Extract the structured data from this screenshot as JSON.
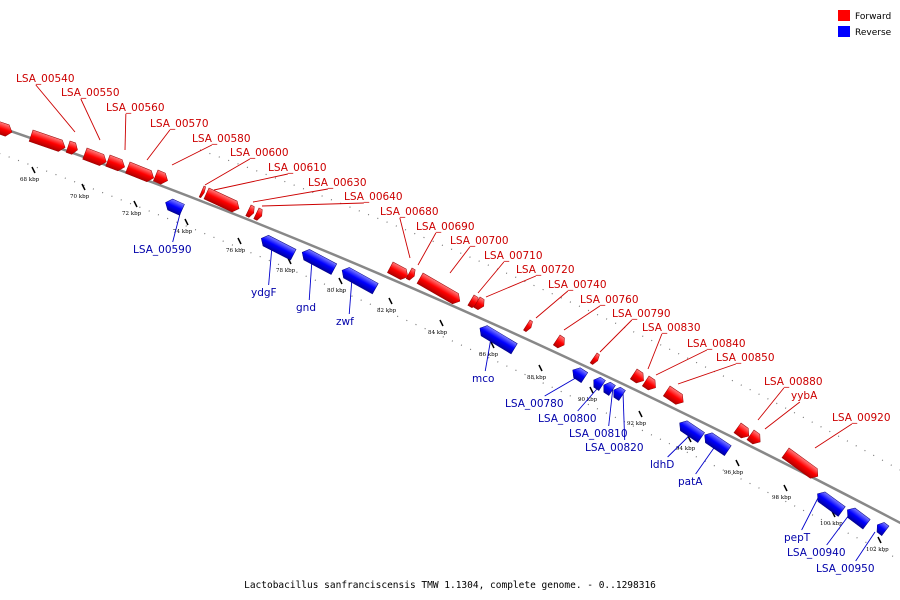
{
  "caption": "Lactobacillus sanfranciscensis TMW 1.1304, complete genome. - 0..1298316",
  "legend": [
    {
      "label": "Forward",
      "color": "#ff0000"
    },
    {
      "label": "Reverse",
      "color": "#0000ff"
    }
  ],
  "colors": {
    "forward": "#ff0000",
    "reverse": "#0000ff",
    "forward_label": "#cc0000",
    "reverse_label": "#0000aa",
    "backbone": "#888888"
  },
  "ticks": [
    "68 kbp",
    "70 kbp",
    "72 kbp",
    "74 kbp",
    "76 kbp",
    "78 kbp",
    "80 kbp",
    "82 kbp",
    "84 kbp",
    "86 kbp",
    "88 kbp",
    "90 kbp",
    "92 kbp",
    "94 kbp",
    "96 kbp",
    "98 kbp",
    "100 kbp",
    "102 kbp"
  ],
  "forward_genes": [
    "LSA_00540",
    "LSA_00550",
    "LSA_00560",
    "LSA_00570",
    "LSA_00580",
    "LSA_00600",
    "LSA_00610",
    "LSA_00630",
    "LSA_00640",
    "LSA_00680",
    "LSA_00690",
    "LSA_00700",
    "LSA_00710",
    "LSA_00720",
    "LSA_00740",
    "LSA_00760",
    "LSA_00790",
    "LSA_00830",
    "LSA_00840",
    "LSA_00850",
    "LSA_00880",
    "yybA",
    "LSA_00920"
  ],
  "reverse_genes": [
    "LSA_00590",
    "ydgF",
    "gnd",
    "zwf",
    "mco",
    "LSA_00780",
    "LSA_00800",
    "LSA_00810",
    "LSA_00820",
    "ldhD",
    "patA",
    "pepT",
    "LSA_00940",
    "LSA_00950"
  ]
}
